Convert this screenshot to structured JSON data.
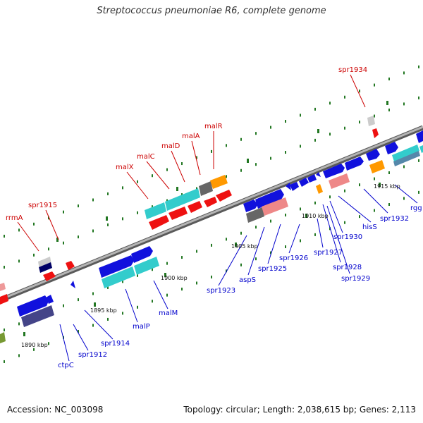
{
  "title": "Streptococcus pneumoniae R6, complete genome",
  "footer": {
    "accession": "Accession: NC_003098",
    "summary": "Topology: circular; Length: 2,038,615 bp; Genes: 2,113"
  },
  "colors": {
    "forward_label": "#cc0000",
    "reverse_label": "#0000cc",
    "backbone": "#888888",
    "tick": "#227722"
  },
  "scale_labels": [
    "1890 kbp",
    "1895 kbp",
    "1900 kbp",
    "1905 kbp",
    "1910 kbp",
    "1915 kbp"
  ],
  "forward_genes": [
    "rrmA",
    "spr1915",
    "malX",
    "malC",
    "malD",
    "malA",
    "malR",
    "spr1934"
  ],
  "reverse_genes": [
    "ctpC",
    "spr1912",
    "spr1914",
    "malP",
    "malM",
    "spr1923",
    "aspS",
    "spr1925",
    "spr1926",
    "spr1927",
    "spr1928",
    "spr1929",
    "spr1930",
    "hisS",
    "spr1932",
    "rgg"
  ]
}
